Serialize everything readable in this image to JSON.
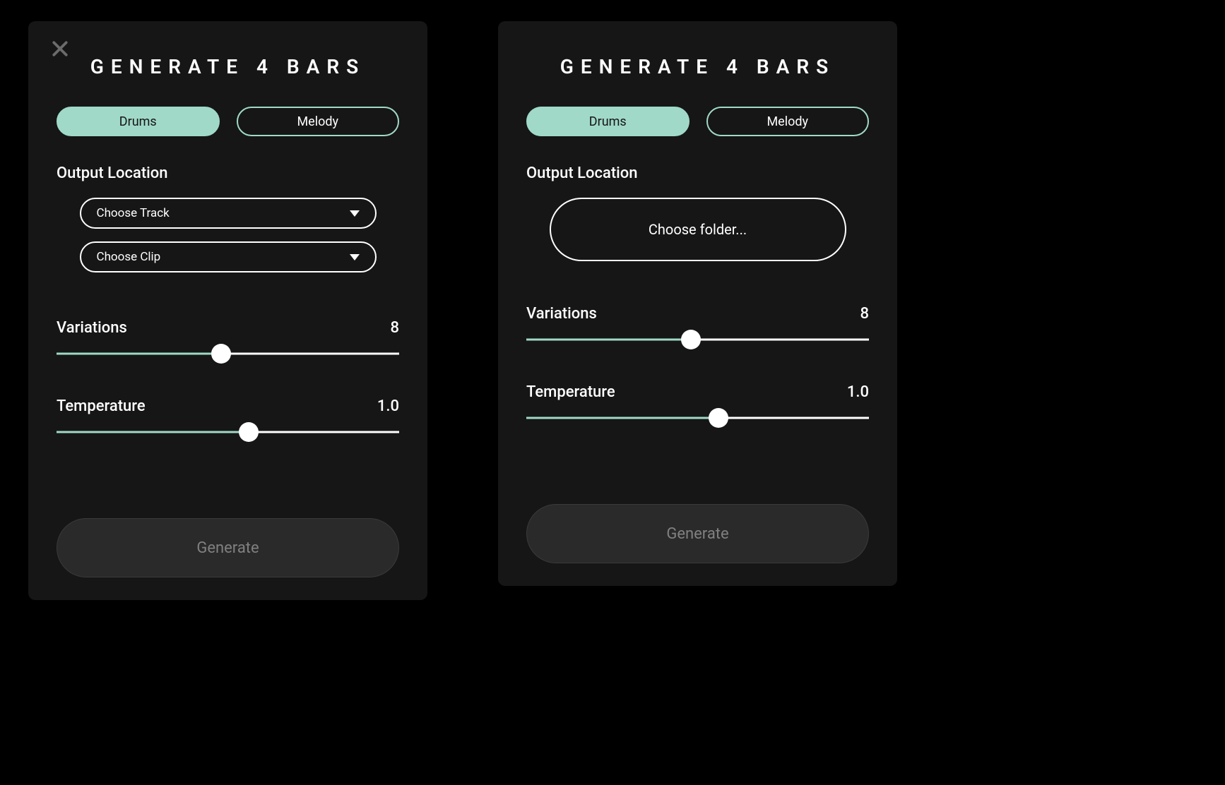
{
  "colors": {
    "background": "#000000",
    "panel_bg": "#161616",
    "accent": "#a0d9c8",
    "text": "#ffffff",
    "muted_text": "#808080",
    "close_icon": "#6b6b6b",
    "generate_bg": "#2a2a2a",
    "generate_border": "#3a3a3a"
  },
  "panel_a": {
    "title": "GENERATE 4 BARS",
    "tabs": {
      "drums": "Drums",
      "melody": "Melody",
      "active": "drums"
    },
    "output_location_label": "Output Location",
    "dropdowns": {
      "track": "Choose Track",
      "clip": "Choose Clip"
    },
    "sliders": {
      "variations": {
        "label": "Variations",
        "value": "8",
        "fill_percent": 48
      },
      "temperature": {
        "label": "Temperature",
        "value": "1.0",
        "fill_percent": 56
      }
    },
    "generate_label": "Generate"
  },
  "panel_b": {
    "title": "GENERATE 4 BARS",
    "tabs": {
      "drums": "Drums",
      "melody": "Melody",
      "active": "drums"
    },
    "output_location_label": "Output Location",
    "choose_folder_label": "Choose folder...",
    "sliders": {
      "variations": {
        "label": "Variations",
        "value": "8",
        "fill_percent": 48
      },
      "temperature": {
        "label": "Temperature",
        "value": "1.0",
        "fill_percent": 56
      }
    },
    "generate_label": "Generate"
  }
}
